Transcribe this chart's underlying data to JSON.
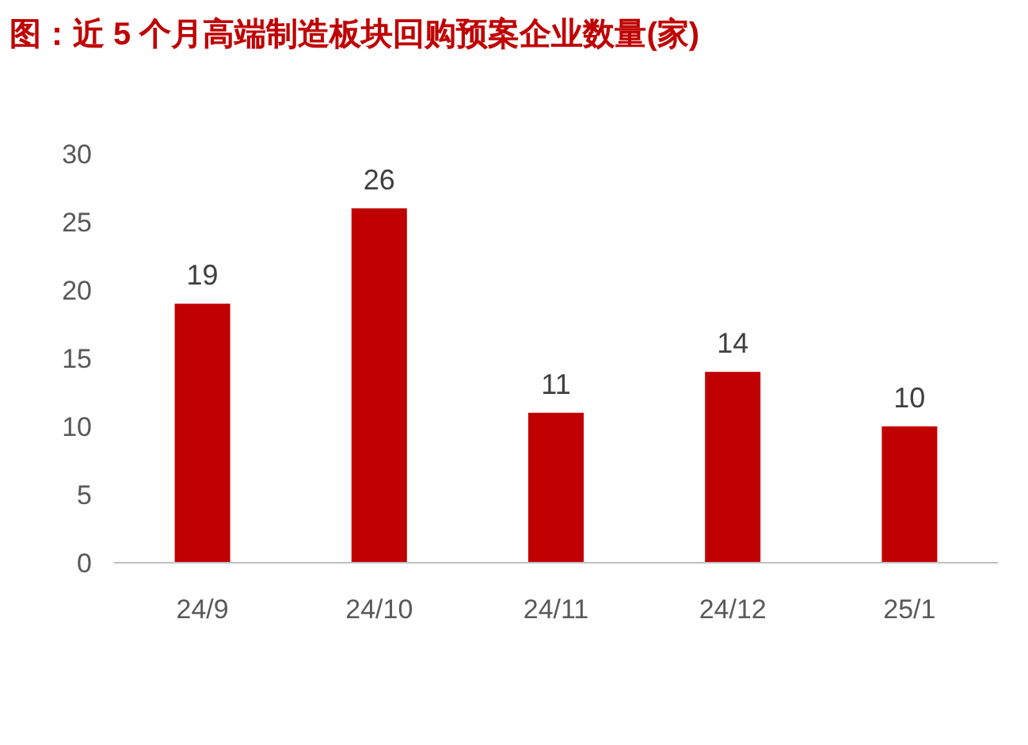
{
  "chart_data": {
    "type": "bar",
    "title": "图：近 5 个月高端制造板块回购预案企业数量(家)",
    "categories": [
      "24/9",
      "24/10",
      "24/11",
      "24/12",
      "25/1"
    ],
    "values": [
      19,
      26,
      11,
      14,
      10
    ],
    "color": "#c00000",
    "ylim": [
      0,
      30
    ],
    "yticks": [
      0,
      5,
      10,
      15,
      20,
      25,
      30
    ],
    "data_labels": true,
    "grid": false
  }
}
